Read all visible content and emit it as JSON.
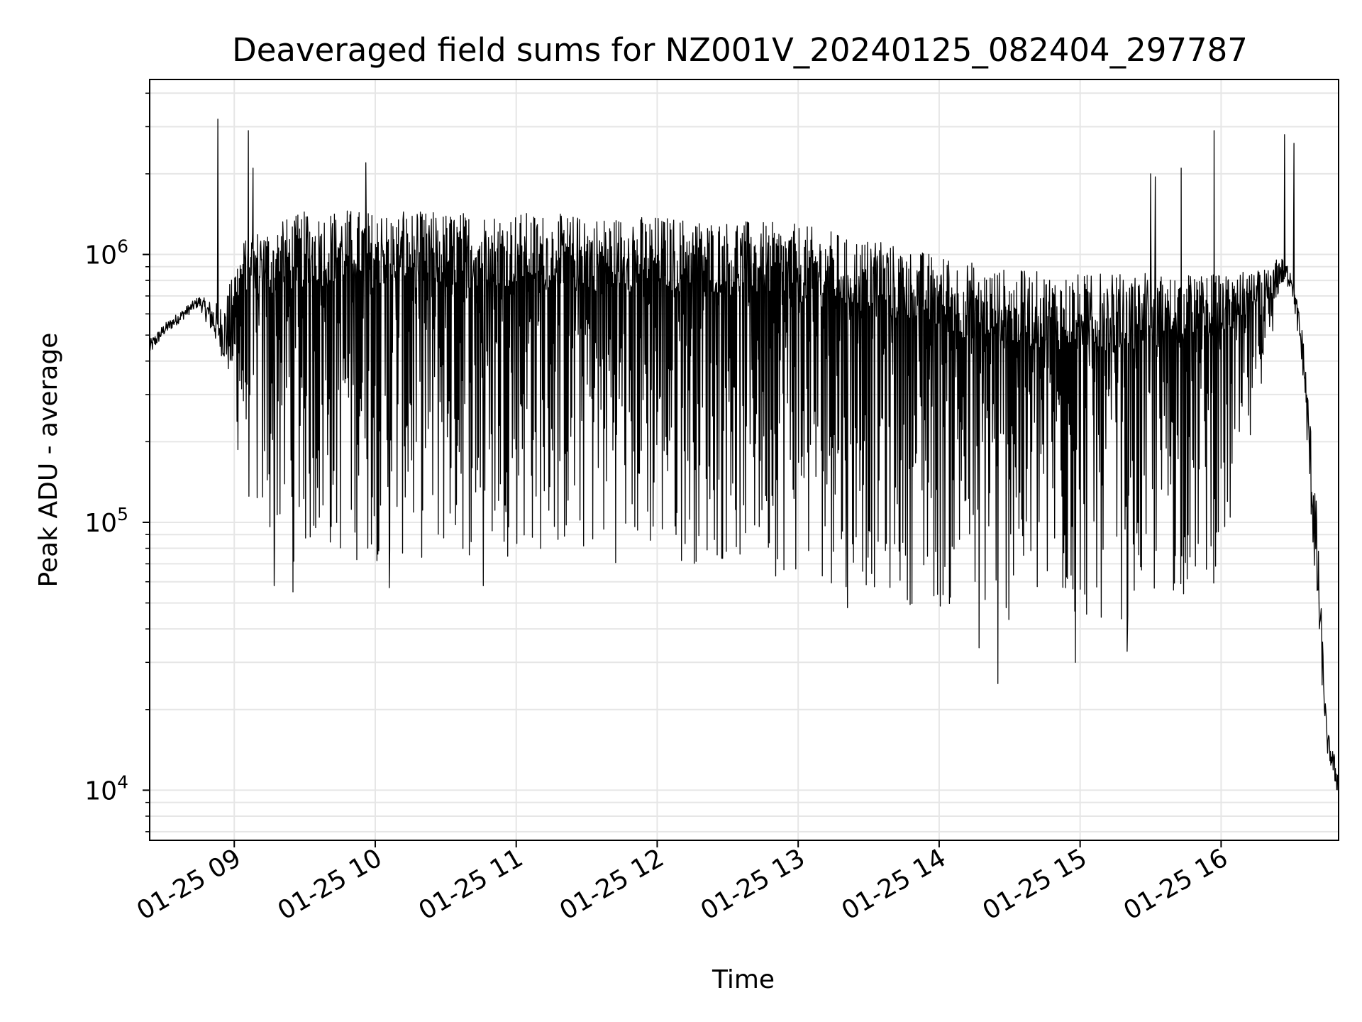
{
  "chart_data": {
    "type": "line",
    "title": "Deaveraged field sums for NZ001V_20240125_082404_297787",
    "xlabel": "Time",
    "ylabel": "Peak ADU - average",
    "yscale": "log",
    "ylim": [
      6500,
      4500000
    ],
    "xlim": [
      "2024-01-25 08:24",
      "2024-01-25 16:50"
    ],
    "grid": true,
    "x_tick_labels": [
      "01-25 09",
      "01-25 10",
      "01-25 11",
      "01-25 12",
      "01-25 13",
      "01-25 14",
      "01-25 15",
      "01-25 16"
    ],
    "x_ticks": [
      "2024-01-25 09:00",
      "2024-01-25 10:00",
      "2024-01-25 11:00",
      "2024-01-25 12:00",
      "2024-01-25 13:00",
      "2024-01-25 14:00",
      "2024-01-25 15:00",
      "2024-01-25 16:00"
    ],
    "y_tick_labels": [
      {
        "value": 10000,
        "base": "10",
        "exponent": "4"
      },
      {
        "value": 100000,
        "base": "10",
        "exponent": "5"
      },
      {
        "value": 1000000,
        "base": "10",
        "exponent": "6"
      }
    ],
    "series": [
      {
        "color": "#000000",
        "envelope_time": [
          "08:24",
          "08:30",
          "08:45",
          "08:55",
          "09:05",
          "09:15",
          "09:30",
          "09:45",
          "10:00",
          "10:30",
          "11:00",
          "11:30",
          "12:00",
          "12:30",
          "13:00",
          "13:30",
          "14:00",
          "14:30",
          "15:00",
          "15:30",
          "16:00",
          "16:20",
          "16:25",
          "16:30",
          "16:35",
          "16:40",
          "16:45",
          "16:50"
        ],
        "envelope_high": [
          480000,
          550000,
          700000,
          650000,
          1200000,
          1300000,
          1450000,
          1500000,
          1450000,
          1450000,
          1450000,
          1400000,
          1400000,
          1350000,
          1300000,
          1150000,
          1000000,
          880000,
          850000,
          850000,
          850000,
          880000,
          1000000,
          900000,
          500000,
          150000,
          17000,
          12000
        ],
        "envelope_low": [
          400000,
          480000,
          620000,
          350000,
          120000,
          70000,
          70000,
          70000,
          70000,
          70000,
          75000,
          70000,
          70000,
          68000,
          60000,
          55000,
          45000,
          40000,
          40000,
          45000,
          60000,
          300000,
          700000,
          700000,
          300000,
          40000,
          13000,
          8500
        ],
        "spikes": [
          {
            "time": "08:53",
            "value": 3200000
          },
          {
            "time": "09:06",
            "value": 2900000
          },
          {
            "time": "09:08",
            "value": 2100000
          },
          {
            "time": "09:56",
            "value": 2200000
          },
          {
            "time": "15:30",
            "value": 2000000
          },
          {
            "time": "15:32",
            "value": 1950000
          },
          {
            "time": "15:43",
            "value": 2100000
          },
          {
            "time": "15:57",
            "value": 2900000
          },
          {
            "time": "16:27",
            "value": 2800000
          },
          {
            "time": "16:31",
            "value": 2600000
          }
        ],
        "dips": [
          {
            "time": "09:17",
            "value": 58000
          },
          {
            "time": "09:25",
            "value": 55000
          },
          {
            "time": "10:06",
            "value": 57000
          },
          {
            "time": "10:46",
            "value": 58000
          },
          {
            "time": "13:21",
            "value": 48000
          },
          {
            "time": "14:17",
            "value": 34000
          },
          {
            "time": "14:25",
            "value": 25000
          },
          {
            "time": "14:58",
            "value": 30000
          },
          {
            "time": "15:20",
            "value": 33000
          }
        ]
      }
    ]
  }
}
